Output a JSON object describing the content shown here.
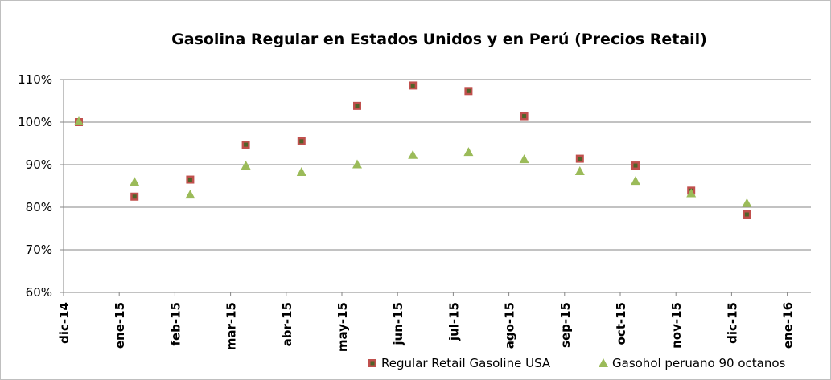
{
  "chart_data": {
    "type": "scatter",
    "title": "Gasolina Regular en Estados Unidos y en Perú (Precios Retail)",
    "xlabel": "",
    "ylabel": "",
    "x_categories": [
      "dic-14",
      "ene-15",
      "feb-15",
      "mar-15",
      "abr-15",
      "may-15",
      "jun-15",
      "jul-15",
      "ago-15",
      "sep-15",
      "oct-15",
      "nov-15",
      "dic-15",
      "ene-16"
    ],
    "ylim": [
      60,
      110
    ],
    "y_ticks": [
      "60%",
      "70%",
      "80%",
      "90%",
      "100%",
      "110%"
    ],
    "y_unit": "%",
    "grid": true,
    "legend_position": "bottom-right",
    "series": [
      {
        "name": "Regular Retail Gasoline USA",
        "marker": "square",
        "color": "#c0504d",
        "inner_color": "#4f6228",
        "points": [
          {
            "x": "dic-14",
            "y": 100.0
          },
          {
            "x": "ene-15",
            "y": 82.5
          },
          {
            "x": "feb-15",
            "y": 86.5
          },
          {
            "x": "mar-15",
            "y": 94.7
          },
          {
            "x": "abr-15",
            "y": 95.5
          },
          {
            "x": "may-15",
            "y": 103.8
          },
          {
            "x": "jun-15",
            "y": 108.6
          },
          {
            "x": "jul-15",
            "y": 107.3
          },
          {
            "x": "ago-15",
            "y": 101.4
          },
          {
            "x": "sep-15",
            "y": 91.4
          },
          {
            "x": "oct-15",
            "y": 89.8
          },
          {
            "x": "nov-15",
            "y": 83.9
          },
          {
            "x": "dic-15",
            "y": 78.3
          }
        ]
      },
      {
        "name": "Gasohol peruano 90 octanos",
        "marker": "triangle",
        "color": "#9bbb59",
        "points": [
          {
            "x": "dic-14",
            "y": 100.2
          },
          {
            "x": "ene-15",
            "y": 86.0
          },
          {
            "x": "feb-15",
            "y": 83.0
          },
          {
            "x": "mar-15",
            "y": 89.8
          },
          {
            "x": "abr-15",
            "y": 88.3
          },
          {
            "x": "may-15",
            "y": 90.1
          },
          {
            "x": "jun-15",
            "y": 92.3
          },
          {
            "x": "jul-15",
            "y": 93.0
          },
          {
            "x": "ago-15",
            "y": 91.3
          },
          {
            "x": "sep-15",
            "y": 88.5
          },
          {
            "x": "oct-15",
            "y": 86.2
          },
          {
            "x": "nov-15",
            "y": 83.3
          },
          {
            "x": "dic-15",
            "y": 81.0
          }
        ]
      }
    ]
  }
}
